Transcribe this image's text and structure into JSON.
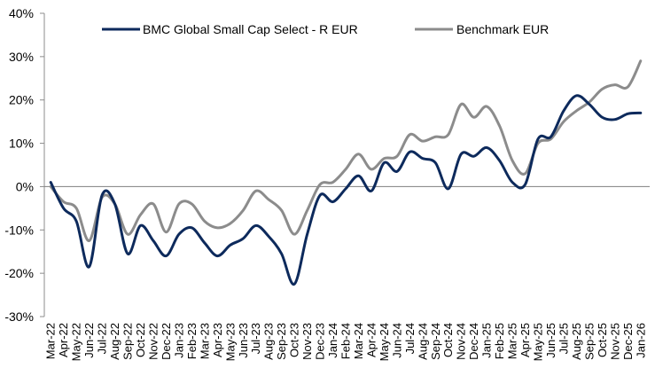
{
  "chart_data": {
    "type": "line",
    "title": "",
    "xlabel": "",
    "ylabel": "",
    "ylim": [
      -30,
      40
    ],
    "yticks": [
      40,
      30,
      20,
      10,
      0,
      -10,
      -20,
      -30
    ],
    "ytick_format": "percent",
    "grid": false,
    "legend_position": "top-center",
    "categories": [
      "Mar-22",
      "Apr-22",
      "May-22",
      "Jun-22",
      "Jul-22",
      "Aug-22",
      "Sep-22",
      "Oct-22",
      "Nov-22",
      "Dec-22",
      "Jan-23",
      "Feb-23",
      "Mar-23",
      "Apr-23",
      "May-23",
      "Jun-23",
      "Jul-23",
      "Aug-23",
      "Sep-23",
      "Oct-23",
      "Nov-23",
      "Dec-23",
      "Jan-24",
      "Feb-24",
      "Mar-24",
      "Apr-24",
      "May-24",
      "Jun-24",
      "Jul-24",
      "Aug-24",
      "Sep-24",
      "Oct-24",
      "Nov-24",
      "Dec-24",
      "Jan-25",
      "Feb-25",
      "Mar-25",
      "Apr-25",
      "May-25",
      "Jun-25",
      "Jul-25",
      "Aug-25",
      "Sep-25",
      "Oct-25",
      "Nov-25",
      "Dec-25",
      "Jan-26"
    ],
    "series": [
      {
        "name": "BMC Global Small Cap Select - R EUR",
        "color": "#0d2a5c",
        "values": [
          1,
          -5,
          -8,
          -18.5,
          -2,
          -4,
          -15.5,
          -9,
          -12.5,
          -16,
          -11,
          -9.5,
          -13,
          -16,
          -13.5,
          -12,
          -9,
          -11.5,
          -15.5,
          -22.5,
          -11,
          -2,
          -3.5,
          -0.5,
          2.5,
          -1,
          5.5,
          3.5,
          8,
          6.5,
          5.5,
          -0.5,
          7.5,
          7,
          9,
          6,
          1,
          0.5,
          11,
          11.5,
          17.5,
          21,
          19,
          16,
          15.5,
          16.8,
          17
        ]
      },
      {
        "name": "Benchmark EUR",
        "color": "#8c8c8c",
        "values": [
          0,
          -3.5,
          -5,
          -12.5,
          -2.5,
          -4,
          -11,
          -6.5,
          -4,
          -10.5,
          -4,
          -4,
          -8,
          -9.5,
          -8.5,
          -5.5,
          -1,
          -3,
          -5.5,
          -11,
          -5.5,
          0.5,
          1,
          4,
          7.5,
          4,
          6.5,
          7,
          12,
          10.5,
          11.5,
          12,
          19,
          16,
          18.5,
          14,
          6,
          3,
          10,
          11,
          15,
          17.5,
          19.5,
          22.5,
          23.5,
          23,
          29
        ]
      }
    ]
  },
  "colors": {
    "axis": "#8c8c8c",
    "zero_line": "#7f7f7f"
  }
}
